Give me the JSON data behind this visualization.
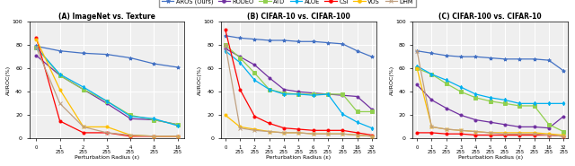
{
  "legend_entries": [
    "AROS (Ours)",
    "RODEO",
    "ATD",
    "ALOE",
    "CSI",
    "VOS",
    "DHM"
  ],
  "colors": [
    "#4472C4",
    "#7030A0",
    "#92D050",
    "#00B0F0",
    "#FF0000",
    "#FFC000",
    "#C0A080"
  ],
  "markers": [
    "*",
    "o",
    "s",
    "d",
    "o",
    "o",
    "x"
  ],
  "series_keys": [
    "AROS",
    "RODEO",
    "ATD",
    "ALOE",
    "CSI",
    "VOS",
    "DHM"
  ],
  "ylim": [
    0,
    100
  ],
  "yticks": [
    0,
    20,
    40,
    60,
    80,
    100
  ],
  "xlabel": "Perturbation Radius (ε)",
  "ylabel": "AUROC(%)",
  "bg_color": "#EFEFEF",
  "grid_color": "white",
  "plot_A": {
    "title": "(A) ImageNet vs. Texture",
    "xticks_labels": [
      "0",
      "1\n255",
      "2\n255",
      "3\n255",
      "4\n255",
      "8\n255",
      "16\n255"
    ],
    "xticks_values": [
      0,
      1,
      2,
      3,
      4,
      5,
      6
    ],
    "series": {
      "AROS": [
        79,
        75,
        73,
        72,
        69,
        64,
        61
      ],
      "RODEO": [
        71,
        54,
        42,
        30,
        17,
        16,
        12
      ],
      "ATD": [
        78,
        54,
        42,
        32,
        20,
        16,
        12
      ],
      "ALOE": [
        78,
        55,
        44,
        32,
        19,
        17,
        11
      ],
      "CSI": [
        86,
        15,
        5,
        5,
        2,
        2,
        2
      ],
      "VOS": [
        85,
        42,
        10,
        10,
        3,
        2,
        2
      ],
      "DHM": [
        78,
        30,
        10,
        5,
        3,
        2,
        2
      ]
    }
  },
  "plot_B": {
    "title": "(B) CIFAR-10 vs. CIFAR-100",
    "xticks_labels": [
      "0",
      "1\n255",
      "2\n255",
      "3\n255",
      "4\n255",
      "5\n255",
      "6\n255",
      "7\n255",
      "8\n255",
      "16\n255",
      "32\n255"
    ],
    "xticks_values": [
      0,
      1,
      2,
      3,
      4,
      5,
      6,
      7,
      8,
      9,
      10
    ],
    "series": {
      "AROS": [
        88,
        86,
        85,
        84,
        84,
        83,
        83,
        82,
        81,
        75,
        70
      ],
      "RODEO": [
        77,
        70,
        63,
        52,
        42,
        40,
        39,
        38,
        37,
        36,
        25
      ],
      "ATD": [
        80,
        69,
        56,
        42,
        39,
        38,
        38,
        38,
        38,
        23,
        23
      ],
      "ALOE": [
        75,
        65,
        50,
        42,
        38,
        38,
        37,
        38,
        21,
        14,
        9
      ],
      "CSI": [
        93,
        42,
        19,
        13,
        9,
        8,
        7,
        7,
        7,
        5,
        3
      ],
      "VOS": [
        20,
        10,
        8,
        6,
        5,
        5,
        4,
        4,
        4,
        3,
        2
      ],
      "DHM": [
        80,
        9,
        7,
        6,
        5,
        5,
        4,
        4,
        4,
        3,
        2
      ]
    }
  },
  "plot_C": {
    "title": "(C) CIFAR-100 vs. CIFAR-10",
    "xticks_labels": [
      "0",
      "1\n255",
      "2\n255",
      "3\n255",
      "4\n255",
      "5\n255",
      "6\n255",
      "7\n255",
      "8\n255",
      "16\n255",
      "32\n255"
    ],
    "xticks_values": [
      0,
      1,
      2,
      3,
      4,
      5,
      6,
      7,
      8,
      9,
      10
    ],
    "series": {
      "AROS": [
        75,
        73,
        71,
        70,
        70,
        69,
        68,
        68,
        68,
        67,
        58
      ],
      "RODEO": [
        46,
        33,
        26,
        20,
        16,
        14,
        12,
        10,
        10,
        9,
        19
      ],
      "ATD": [
        60,
        55,
        47,
        40,
        35,
        32,
        30,
        28,
        28,
        12,
        6
      ],
      "ALOE": [
        62,
        55,
        50,
        44,
        38,
        35,
        33,
        30,
        30,
        30,
        30
      ],
      "CSI": [
        5,
        5,
        4,
        4,
        3,
        3,
        3,
        3,
        3,
        3,
        2
      ],
      "VOS": [
        60,
        10,
        8,
        7,
        6,
        5,
        5,
        5,
        5,
        4,
        3
      ],
      "DHM": [
        75,
        10,
        8,
        7,
        6,
        5,
        4,
        4,
        4,
        3,
        2
      ]
    }
  }
}
